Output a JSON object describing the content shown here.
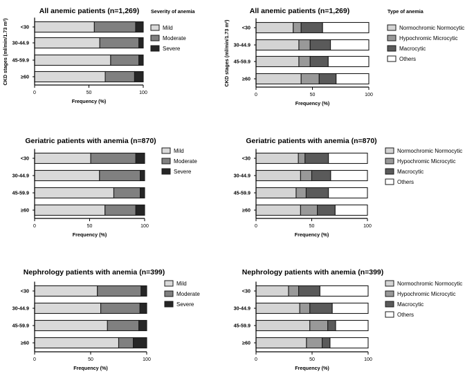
{
  "colors": {
    "mild": "#d9d9d9",
    "moderate": "#808080",
    "severe": "#262626",
    "normochromic": "#d4d4d4",
    "hypochromic": "#999999",
    "macrocytic": "#5a5a5a",
    "others": "#ffffff"
  },
  "shared": {
    "xlabel": "Frequency  (%)",
    "ylabel": "CKD stages (ml/min/1.73 m²)",
    "categories": [
      "<30",
      "30-44.9",
      "45-59.9",
      "≥60"
    ],
    "xticks": [
      "0",
      "50",
      "100"
    ]
  },
  "chart_data": [
    {
      "type": "bar",
      "stacked": true,
      "orientation": "horizontal",
      "title": "All anemic patients (n=1,269)",
      "legend_title": "Severity of anemia",
      "xlim": [
        0,
        100
      ],
      "series": [
        {
          "name": "Mild",
          "color_key": "mild",
          "values": [
            55,
            60,
            70,
            65
          ]
        },
        {
          "name": "Moderate",
          "color_key": "moderate",
          "values": [
            38,
            36,
            26,
            27
          ]
        },
        {
          "name": "Severe",
          "color_key": "severe",
          "values": [
            7,
            4,
            4,
            8
          ]
        }
      ]
    },
    {
      "type": "bar",
      "stacked": true,
      "orientation": "horizontal",
      "title": "All anemic patients (n=1,269)",
      "legend_title": "Type of anemia",
      "xlim": [
        0,
        100
      ],
      "series": [
        {
          "name": "Normochromic Normocytic",
          "color_key": "normochromic",
          "values": [
            33,
            38,
            38,
            40
          ]
        },
        {
          "name": "Hypochromic Microcytic",
          "color_key": "hypochromic",
          "values": [
            7,
            10,
            10,
            16
          ]
        },
        {
          "name": "Macrocytic",
          "color_key": "macrocytic",
          "values": [
            19,
            18,
            16,
            15
          ]
        },
        {
          "name": "Others",
          "color_key": "others",
          "values": [
            41,
            34,
            36,
            29
          ]
        }
      ]
    },
    {
      "type": "bar",
      "stacked": true,
      "orientation": "horizontal",
      "title": "Geriatric patients with anemia (n=870)",
      "legend_title": "",
      "xlim": [
        0,
        100
      ],
      "series": [
        {
          "name": "Mild",
          "color_key": "mild",
          "values": [
            51,
            59,
            72,
            64
          ]
        },
        {
          "name": "Moderate",
          "color_key": "moderate",
          "values": [
            41,
            37,
            24,
            28
          ]
        },
        {
          "name": "Severe",
          "color_key": "severe",
          "values": [
            8,
            4,
            4,
            8
          ]
        }
      ]
    },
    {
      "type": "bar",
      "stacked": true,
      "orientation": "horizontal",
      "title": "Geriatric patients with anemia (n=870)",
      "legend_title": "",
      "xlim": [
        0,
        100
      ],
      "series": [
        {
          "name": "Normochromic Normocytic",
          "color_key": "normochromic",
          "values": [
            38,
            40,
            36,
            40
          ]
        },
        {
          "name": "Hypochromic Microcytic",
          "color_key": "hypochromic",
          "values": [
            6,
            10,
            9,
            15
          ]
        },
        {
          "name": "Macrocytic",
          "color_key": "macrocytic",
          "values": [
            21,
            17,
            20,
            16
          ]
        },
        {
          "name": "Others",
          "color_key": "others",
          "values": [
            35,
            33,
            35,
            29
          ]
        }
      ]
    },
    {
      "type": "bar",
      "stacked": true,
      "orientation": "horizontal",
      "title": "Nephrology patients with anemia  (n=399)",
      "legend_title": "",
      "xlim": [
        0,
        100
      ],
      "series": [
        {
          "name": "Mild",
          "color_key": "mild",
          "values": [
            56,
            59,
            65,
            75
          ]
        },
        {
          "name": "Moderate",
          "color_key": "moderate",
          "values": [
            39,
            35,
            28,
            13
          ]
        },
        {
          "name": "Severe",
          "color_key": "severe",
          "values": [
            5,
            6,
            7,
            12
          ]
        }
      ]
    },
    {
      "type": "bar",
      "stacked": true,
      "orientation": "horizontal",
      "title": "Nephrology patients with anemia  (n=399)",
      "legend_title": "",
      "xlim": [
        0,
        100
      ],
      "series": [
        {
          "name": "Normochromic Normocytic",
          "color_key": "normochromic",
          "values": [
            29,
            39,
            48,
            45
          ]
        },
        {
          "name": "Hypochromic Microcytic",
          "color_key": "hypochromic",
          "values": [
            9,
            9,
            16,
            14
          ]
        },
        {
          "name": "Macrocytic",
          "color_key": "macrocytic",
          "values": [
            19,
            20,
            7,
            7
          ]
        },
        {
          "name": "Others",
          "color_key": "others",
          "values": [
            43,
            32,
            29,
            34
          ]
        }
      ]
    }
  ]
}
